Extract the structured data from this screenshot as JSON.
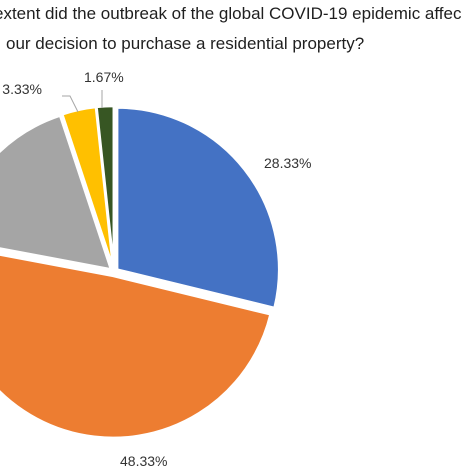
{
  "chart_data": {
    "type": "pie",
    "title_lines": [
      "extent did the outbreak of the global COVID-19 epidemic affec",
      "our decision to purchase a residential property?"
    ],
    "slices": [
      {
        "value": 28.33,
        "label": "28.33%",
        "color": "#4472c4"
      },
      {
        "value": 48.33,
        "label": "48.33%",
        "color": "#ed7d31"
      },
      {
        "value": 16.67,
        "label": "",
        "color": "#a5a5a5"
      },
      {
        "value": 3.33,
        "label": "3.33%",
        "color": "#ffc000"
      },
      {
        "value": 1.67,
        "label": "1.67%",
        "color": "#375623"
      }
    ],
    "start_angle_deg": 0,
    "direction": "clockwise",
    "legend": "none"
  }
}
